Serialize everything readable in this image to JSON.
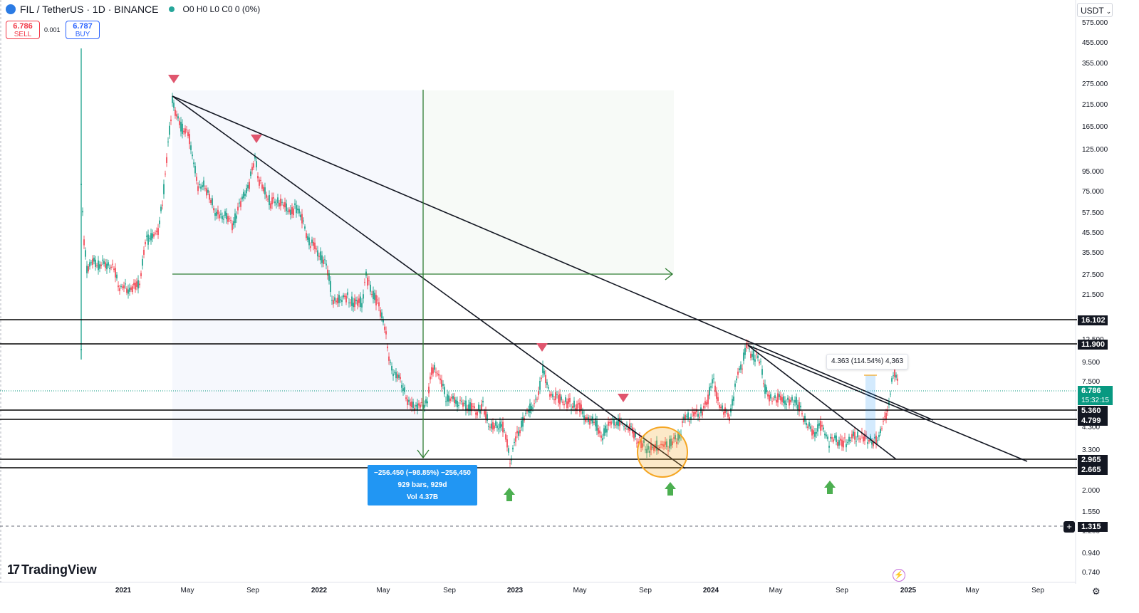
{
  "header": {
    "symbol": "FIL / TetherUS · 1D · BINANCE",
    "ohlc": "O0 H0 L0 C0 0 (0%)"
  },
  "trade": {
    "sell_price": "6.786",
    "sell_label": "SELL",
    "spread": "0.001",
    "buy_price": "6.787",
    "buy_label": "BUY"
  },
  "currency": "USDT",
  "y_axis_ticks": [
    "575.000",
    "455.000",
    "355.000",
    "275.000",
    "215.000",
    "165.000",
    "125.000",
    "95.000",
    "75.000",
    "57.500",
    "45.500",
    "35.500",
    "27.500",
    "21.500",
    "12.500",
    "9.500",
    "7.500",
    "4.300",
    "3.300",
    "2.000",
    "1.550",
    "1.200",
    "0.940",
    "0.740"
  ],
  "price_labels": {
    "line1": "16.102",
    "line2": "11.900",
    "last_price": "6.786",
    "countdown": "15:32:15",
    "line3": "5.360",
    "line4": "4.799",
    "line5": "2.965",
    "line6": "2.665",
    "crosshair": "1.315"
  },
  "x_axis_ticks": [
    {
      "label": "2021",
      "year": true
    },
    {
      "label": "May",
      "year": false
    },
    {
      "label": "Sep",
      "year": false
    },
    {
      "label": "2022",
      "year": true
    },
    {
      "label": "May",
      "year": false
    },
    {
      "label": "Sep",
      "year": false
    },
    {
      "label": "2023",
      "year": true
    },
    {
      "label": "May",
      "year": false
    },
    {
      "label": "Sep",
      "year": false
    },
    {
      "label": "2024",
      "year": true
    },
    {
      "label": "May",
      "year": false
    },
    {
      "label": "Sep",
      "year": false
    },
    {
      "label": "2025",
      "year": true
    },
    {
      "label": "May",
      "year": false
    },
    {
      "label": "Sep",
      "year": false
    }
  ],
  "measure_box": {
    "line1": "−256.450 (−98.85%) −256,450",
    "line2": "929 bars, 929d",
    "line3": "Vol 4.37B"
  },
  "range_tooltip": "4.363 (114.54%) 4,363",
  "brand": "TradingView",
  "colors": {
    "up": "#089981",
    "down": "#f23645",
    "arrow_up": "#4caf50",
    "marker_down": "#e0566e",
    "measure": "#2196f3",
    "drawing_green": "#2e7d32",
    "circle": "#f5a623"
  },
  "icons": [
    "plus-icon",
    "flash-icon",
    "gear-icon",
    "chevron-down-icon"
  ]
}
